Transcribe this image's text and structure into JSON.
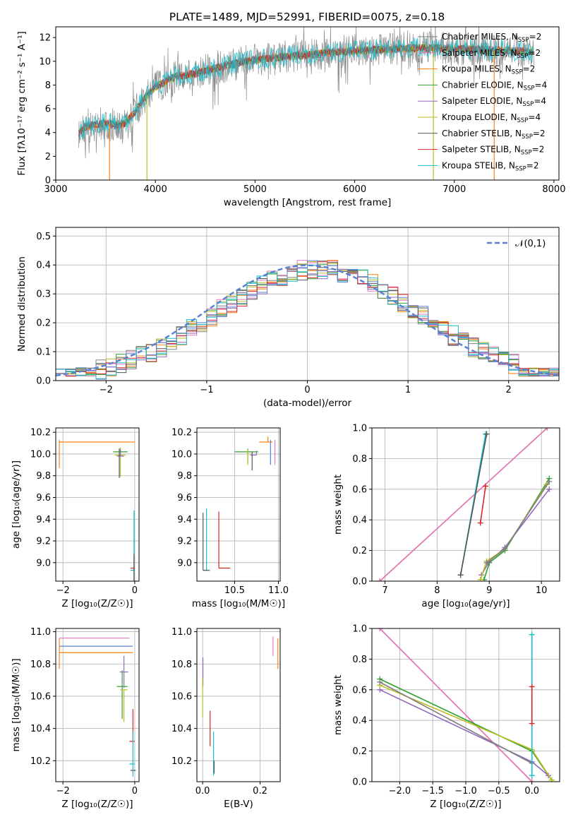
{
  "title": "PLATE=1489, MJD=52991, FIBERID=0075, z=0.18",
  "colors": {
    "Chabrier MILES": "#808080",
    "Salpeter MILES": "#e377c2",
    "Kroupa MILES": "#ff7f0e",
    "Chabrier ELODIE": "#2ca02c",
    "Salpeter ELODIE": "#9467bd",
    "Kroupa ELODIE": "#bcbd22",
    "Chabrier STELIB": "#555555",
    "Salpeter STELIB": "#d62728",
    "Kroupa STELIB": "#17becf",
    "normal_curve": "#5a82d2"
  },
  "chart_data": [
    {
      "id": "spectrum",
      "type": "line",
      "title": "PLATE=1489, MJD=52991, FIBERID=0075, z=0.18",
      "xlabel": "wavelength [Angstrom, rest frame]",
      "ylabel": "Flux [fλ10⁻¹⁷ erg cm⁻² s⁻¹ A⁻¹]",
      "xlim": [
        3000,
        8050
      ],
      "ylim": [
        0,
        12.9
      ],
      "xticks": [
        3000,
        4000,
        5000,
        6000,
        7000,
        8000
      ],
      "yticks": [
        0,
        2,
        4,
        6,
        8,
        10,
        12
      ],
      "legend_position": "upper-right",
      "legend": [
        {
          "label": "Chabrier MILES, N",
          "sub": "SSP",
          "suffix": "=2",
          "color": "#808080"
        },
        {
          "label": "Salpeter MILES, N",
          "sub": "SSP",
          "suffix": "=2",
          "color": "#e377c2"
        },
        {
          "label": "Kroupa MILES, N",
          "sub": "SSP",
          "suffix": "=2",
          "color": "#ff7f0e"
        },
        {
          "label": "Chabrier ELODIE, N",
          "sub": "SSP",
          "suffix": "=4",
          "color": "#2ca02c"
        },
        {
          "label": "Salpeter ELODIE, N",
          "sub": "SSP",
          "suffix": "=4",
          "color": "#9467bd"
        },
        {
          "label": "Kroupa ELODIE, N",
          "sub": "SSP",
          "suffix": "=4",
          "color": "#bcbd22"
        },
        {
          "label": "Chabrier STELIB, N",
          "sub": "SSP",
          "suffix": "=2",
          "color": "#555555"
        },
        {
          "label": "Salpeter STELIB, N",
          "sub": "SSP",
          "suffix": "=2",
          "color": "#d62728"
        },
        {
          "label": "Kroupa STELIB, N",
          "sub": "SSP",
          "suffix": "=2",
          "color": "#17becf"
        }
      ],
      "continuum": {
        "x": [
          3230,
          3300,
          3400,
          3500,
          3600,
          3700,
          3800,
          3900,
          4000,
          4100,
          4200,
          4300,
          4400,
          4500,
          4700,
          4900,
          5100,
          5300,
          5500,
          5700,
          6000,
          6300,
          6600,
          6900,
          7200,
          7500,
          7800
        ],
        "y": [
          4.0,
          4.5,
          4.7,
          4.8,
          4.6,
          4.8,
          5.8,
          7.0,
          7.8,
          8.3,
          8.7,
          8.8,
          9.0,
          9.2,
          9.6,
          10.0,
          10.2,
          10.4,
          10.5,
          10.7,
          10.9,
          11.0,
          11.1,
          11.1,
          11.0,
          10.9,
          10.8
        ]
      },
      "features": [
        {
          "x": 3540,
          "y_low": 0.0,
          "color": "#ff7f0e"
        },
        {
          "x": 3915,
          "y_low": 0.0,
          "color": "#bcbd22"
        },
        {
          "x": 6790,
          "y_low": 0.0,
          "color": "#bcbd22"
        },
        {
          "x": 7400,
          "y_low": 0.0,
          "color": "#ff7f0e"
        }
      ]
    },
    {
      "id": "residuals",
      "type": "histogram",
      "xlabel": "(data-model)/error",
      "ylabel": "Normed distribution",
      "xlim": [
        -2.5,
        2.5
      ],
      "ylim": [
        0,
        0.53
      ],
      "xticks": [
        -2,
        -1,
        0,
        1,
        2
      ],
      "yticks": [
        0.0,
        0.1,
        0.2,
        0.3,
        0.4,
        0.5
      ],
      "legend_position": "upper-right",
      "legend_label": "𝒩(0,1)",
      "bin_width": 0.1,
      "curve": "normal(0,1)",
      "series": [
        {
          "name": "Chabrier MILES",
          "color": "#808080",
          "seed": 1
        },
        {
          "name": "Salpeter MILES",
          "color": "#e377c2",
          "seed": 2
        },
        {
          "name": "Kroupa MILES",
          "color": "#ff7f0e",
          "seed": 3
        },
        {
          "name": "Chabrier ELODIE",
          "color": "#2ca02c",
          "seed": 4
        },
        {
          "name": "Salpeter ELODIE",
          "color": "#9467bd",
          "seed": 5
        },
        {
          "name": "Kroupa ELODIE",
          "color": "#bcbd22",
          "seed": 6
        },
        {
          "name": "Chabrier STELIB",
          "color": "#555555",
          "seed": 7
        },
        {
          "name": "Salpeter STELIB",
          "color": "#d62728",
          "seed": 8
        },
        {
          "name": "Kroupa STELIB",
          "color": "#17becf",
          "seed": 9
        },
        {
          "name": "blue",
          "color": "#5a82d2",
          "seed": 10
        }
      ]
    },
    {
      "id": "age_vs_Z",
      "type": "errorbar",
      "xlabel": "Z [log₁₀(Z/Z☉)]",
      "ylabel": "age  [log₁₀(age/yr)]",
      "xlim": [
        -2.2,
        0.12
      ],
      "ylim": [
        8.83,
        10.24
      ],
      "xticks": [
        -2,
        0
      ],
      "yticks": [
        9.0,
        9.2,
        9.4,
        9.6,
        9.8,
        10.0,
        10.2
      ],
      "points": [
        {
          "x": -0.4,
          "y": 10.02,
          "xerr": [
            0.2,
            0.2
          ],
          "yerr": [
            0.03,
            0.03
          ],
          "color": "#2ca02c"
        },
        {
          "x": -0.4,
          "y": 9.99,
          "xerr": [
            0.15,
            0.15
          ],
          "yerr": [
            0.2,
            0.07
          ],
          "color": "#bcbd22"
        },
        {
          "x": -0.4,
          "y": 9.98,
          "xerr": [
            0.1,
            0.1
          ],
          "yerr": [
            0.0,
            0.06
          ],
          "color": "#9467bd"
        },
        {
          "x": -0.43,
          "y": 10.02,
          "xerr": [
            0.0,
            0.0
          ],
          "yerr": [
            0.24,
            0.03
          ],
          "color": "#555555"
        },
        {
          "x": -2.1,
          "y": 10.11,
          "xerr": [
            0.0,
            2.1
          ],
          "yerr": [
            0.24,
            0.02
          ],
          "color": "#ff7f0e"
        },
        {
          "x": -0.02,
          "y": 8.95,
          "xerr": [
            0.1,
            0.02
          ],
          "yerr": [
            0.0,
            0.0
          ],
          "color": "#d62728"
        },
        {
          "x": -0.02,
          "y": 8.93,
          "xerr": [
            0.1,
            0.02
          ],
          "yerr": [
            0.1,
            0.55
          ],
          "color": "#17becf"
        },
        {
          "x": -0.02,
          "y": 8.93,
          "xerr": [
            0.0,
            0.0
          ],
          "yerr": [
            0.1,
            0.15
          ],
          "color": "#555555"
        }
      ]
    },
    {
      "id": "age_vs_mass",
      "type": "errorbar",
      "xlabel": "mass [log₁₀(M/M☉)]",
      "ylabel": "",
      "xlim": [
        10.07,
        11.02
      ],
      "ylim": [
        8.83,
        10.24
      ],
      "xticks": [
        10.5,
        11.0
      ],
      "yticks": [
        9.0,
        9.2,
        9.4,
        9.6,
        9.8,
        10.0,
        10.2
      ],
      "points": [
        {
          "x": 10.65,
          "y": 10.02,
          "xerr": [
            0.15,
            0.12
          ],
          "yerr": [
            0.1,
            0.03
          ],
          "color": "#2ca02c"
        },
        {
          "x": 10.65,
          "y": 10.0,
          "xerr": [
            0.0,
            0.03
          ],
          "yerr": [
            0.1,
            0.04
          ],
          "color": "#bcbd22"
        },
        {
          "x": 10.75,
          "y": 9.99,
          "xerr": [
            0.07,
            0.0
          ],
          "yerr": [
            0.0,
            0.04
          ],
          "color": "#9467bd"
        },
        {
          "x": 10.7,
          "y": 10.02,
          "xerr": [
            0.0,
            0.0
          ],
          "yerr": [
            0.17,
            0.0
          ],
          "color": "#555555"
        },
        {
          "x": 10.88,
          "y": 10.11,
          "xerr": [
            0.1,
            0.05
          ],
          "yerr": [
            0.0,
            0.05
          ],
          "color": "#ff7f0e"
        },
        {
          "x": 10.91,
          "y": 10.0,
          "xerr": [
            0.0,
            0.0
          ],
          "yerr": [
            0.1,
            0.13
          ],
          "color": "#5a82d2"
        },
        {
          "x": 10.96,
          "y": 10.0,
          "xerr": [
            0.0,
            0.0
          ],
          "yerr": [
            0.1,
            0.13
          ],
          "color": "#e377c2"
        },
        {
          "x": 10.32,
          "y": 8.95,
          "xerr": [
            0.0,
            0.13
          ],
          "yerr": [
            0.0,
            0.52
          ],
          "color": "#d62728"
        },
        {
          "x": 10.18,
          "y": 8.93,
          "xerr": [
            0.04,
            0.04
          ],
          "yerr": [
            0.0,
            0.57
          ],
          "color": "#17becf"
        },
        {
          "x": 10.14,
          "y": 8.93,
          "xerr": [
            0.0,
            0.07
          ],
          "yerr": [
            0.0,
            0.53
          ],
          "color": "#555555"
        }
      ]
    },
    {
      "id": "weight_vs_age",
      "type": "line",
      "xlabel": "age  [log₁₀(age/yr)]",
      "ylabel": "mass weight",
      "xlim": [
        6.75,
        10.35
      ],
      "ylim": [
        0,
        1.0
      ],
      "xticks": [
        7,
        8,
        9,
        10
      ],
      "yticks": [
        0.0,
        0.2,
        0.4,
        0.6,
        0.8,
        1.0
      ],
      "series": [
        {
          "name": "Kroupa MILES",
          "color": "#ff7f0e",
          "x": [
            6.9,
            10.11
          ],
          "y": [
            0.0,
            1.0
          ]
        },
        {
          "name": "Salpeter MILES",
          "color": "#e377c2",
          "x": [
            6.9,
            10.11
          ],
          "y": [
            0.0,
            1.0
          ]
        },
        {
          "name": "Kroupa STELIB",
          "color": "#17becf",
          "x": [
            8.45,
            8.93
          ],
          "y": [
            0.04,
            0.96
          ]
        },
        {
          "name": "Chabrier STELIB",
          "color": "#555555",
          "x": [
            8.45,
            8.95
          ],
          "y": [
            0.04,
            0.96
          ]
        },
        {
          "name": "Salpeter STELIB",
          "color": "#d62728",
          "x": [
            8.83,
            8.93
          ],
          "y": [
            0.38,
            0.62
          ]
        },
        {
          "name": "Chabrier ELODIE",
          "color": "#2ca02c",
          "x": [
            8.9,
            9.0,
            9.3,
            10.15
          ],
          "y": [
            0.01,
            0.12,
            0.2,
            0.67
          ]
        },
        {
          "name": "Salpeter ELODIE",
          "color": "#9467bd",
          "x": [
            8.85,
            9.0,
            9.3,
            10.15
          ],
          "y": [
            0.04,
            0.13,
            0.22,
            0.6
          ]
        },
        {
          "name": "Kroupa ELODIE",
          "color": "#bcbd22",
          "x": [
            8.83,
            8.95,
            9.3,
            10.1
          ],
          "y": [
            0.01,
            0.13,
            0.21,
            0.63
          ]
        },
        {
          "name": "Chabrier MILES",
          "color": "#808080",
          "x": [
            8.95,
            9.3,
            10.15
          ],
          "y": [
            0.12,
            0.21,
            0.65
          ]
        }
      ]
    },
    {
      "id": "mass_vs_Z",
      "type": "errorbar",
      "xlabel": "Z [log₁₀(Z/Z☉)]",
      "ylabel": "mass [log₁₀(M/M☉)]",
      "xlim": [
        -2.2,
        0.12
      ],
      "ylim": [
        10.07,
        11.02
      ],
      "xticks": [
        -2,
        0
      ],
      "yticks": [
        10.2,
        10.4,
        10.6,
        10.8,
        11.0
      ],
      "points": [
        {
          "x": -2.1,
          "y": 10.96,
          "xerr": [
            0.0,
            1.95
          ],
          "yerr": [
            0.0,
            0.0
          ],
          "color": "#e377c2"
        },
        {
          "x": -2.1,
          "y": 10.91,
          "xerr": [
            0.0,
            2.05
          ],
          "yerr": [
            0.0,
            0.0
          ],
          "color": "#5a82d2"
        },
        {
          "x": -2.1,
          "y": 10.87,
          "xerr": [
            0.0,
            2.05
          ],
          "yerr": [
            0.1,
            0.09
          ],
          "color": "#ff7f0e"
        },
        {
          "x": -0.35,
          "y": 10.66,
          "xerr": [
            0.15,
            0.15
          ],
          "yerr": [
            0.2,
            0.1
          ],
          "color": "#2ca02c"
        },
        {
          "x": -0.3,
          "y": 10.64,
          "xerr": [
            0.1,
            0.1
          ],
          "yerr": [
            0.2,
            0.0
          ],
          "color": "#bcbd22"
        },
        {
          "x": -0.3,
          "y": 10.75,
          "xerr": [
            0.12,
            0.12
          ],
          "yerr": [
            0.1,
            0.1
          ],
          "color": "#9467bd"
        },
        {
          "x": -0.4,
          "y": 10.66,
          "xerr": [
            0.0,
            0.0
          ],
          "yerr": [
            0.0,
            0.0
          ],
          "color": "#555555"
        },
        {
          "x": -0.05,
          "y": 10.32,
          "xerr": [
            0.1,
            0.05
          ],
          "yerr": [
            0.0,
            0.2
          ],
          "color": "#d62728"
        },
        {
          "x": -0.05,
          "y": 10.18,
          "xerr": [
            0.1,
            0.05
          ],
          "yerr": [
            0.08,
            0.2
          ],
          "color": "#17becf"
        },
        {
          "x": -0.02,
          "y": 10.14,
          "xerr": [
            0.1,
            0.05
          ],
          "yerr": [
            0.0,
            0.0
          ],
          "color": "#555555"
        }
      ]
    },
    {
      "id": "mass_vs_ebv",
      "type": "errorbar",
      "xlabel": "E(B-V)",
      "ylabel": "",
      "xlim": [
        -0.02,
        0.27
      ],
      "ylim": [
        10.07,
        11.02
      ],
      "xticks": [
        0.0,
        0.2
      ],
      "yticks": [
        10.2,
        10.4,
        10.6,
        10.8,
        11.0
      ],
      "points": [
        {
          "x": 0.245,
          "y": 10.9,
          "xerr": [
            0.0,
            0.0
          ],
          "yerr": [
            0.05,
            0.07
          ],
          "color": "#e377c2"
        },
        {
          "x": 0.262,
          "y": 10.87,
          "xerr": [
            0.0,
            0.0
          ],
          "yerr": [
            0.1,
            0.09
          ],
          "color": "#ff7f0e"
        },
        {
          "x": 0.001,
          "y": 10.75,
          "xerr": [
            0.0,
            0.0
          ],
          "yerr": [
            0.09,
            0.09
          ],
          "color": "#9467bd"
        },
        {
          "x": 0.0,
          "y": 10.62,
          "xerr": [
            0.0,
            0.0
          ],
          "yerr": [
            0.15,
            0.09
          ],
          "color": "#bcbd22"
        },
        {
          "x": 0.026,
          "y": 10.4,
          "xerr": [
            0.0,
            0.0
          ],
          "yerr": [
            0.11,
            0.11
          ],
          "color": "#d62728"
        },
        {
          "x": 0.038,
          "y": 10.23,
          "xerr": [
            0.0,
            0.0
          ],
          "yerr": [
            0.12,
            0.15
          ],
          "color": "#17becf"
        },
        {
          "x": 0.04,
          "y": 10.2,
          "xerr": [
            0.0,
            0.0
          ],
          "yerr": [
            0.08,
            0.0
          ],
          "color": "#555555"
        }
      ]
    },
    {
      "id": "weight_vs_Z",
      "type": "line",
      "xlabel": "Z [log₁₀(Z/Z☉)]",
      "ylabel": "mass weight",
      "xlim": [
        -2.42,
        0.42
      ],
      "ylim": [
        0,
        1.0
      ],
      "xticks": [
        -2.0,
        -1.5,
        -1.0,
        -0.5,
        0.0
      ],
      "yticks": [
        0.0,
        0.2,
        0.4,
        0.6,
        0.8,
        1.0
      ],
      "series": [
        {
          "name": "Kroupa MILES",
          "color": "#ff7f0e",
          "x": [
            -2.3,
            0.0
          ],
          "y": [
            1.0,
            0.0
          ]
        },
        {
          "name": "Salpeter MILES",
          "color": "#e377c2",
          "x": [
            -2.3,
            0.0
          ],
          "y": [
            1.0,
            0.0
          ]
        },
        {
          "name": "Chabrier ELODIE",
          "color": "#2ca02c",
          "x": [
            -2.3,
            0.0,
            0.3
          ],
          "y": [
            0.67,
            0.2,
            0.01
          ]
        },
        {
          "name": "Salpeter ELODIE",
          "color": "#9467bd",
          "x": [
            -2.3,
            0.0,
            0.25
          ],
          "y": [
            0.6,
            0.13,
            0.04
          ]
        },
        {
          "name": "Kroupa ELODIE",
          "color": "#bcbd22",
          "x": [
            -2.3,
            0.0,
            0.3
          ],
          "y": [
            0.63,
            0.21,
            0.01
          ]
        },
        {
          "name": "Chabrier MILES",
          "color": "#808080",
          "x": [
            -2.3,
            0.0
          ],
          "y": [
            0.65,
            0.12
          ]
        },
        {
          "name": "Kroupa STELIB",
          "color": "#17becf",
          "x": [
            0.0,
            0.0
          ],
          "y": [
            0.04,
            0.96
          ]
        },
        {
          "name": "Salpeter STELIB",
          "color": "#d62728",
          "x": [
            0.0,
            0.0
          ],
          "y": [
            0.38,
            0.62
          ]
        }
      ]
    }
  ]
}
